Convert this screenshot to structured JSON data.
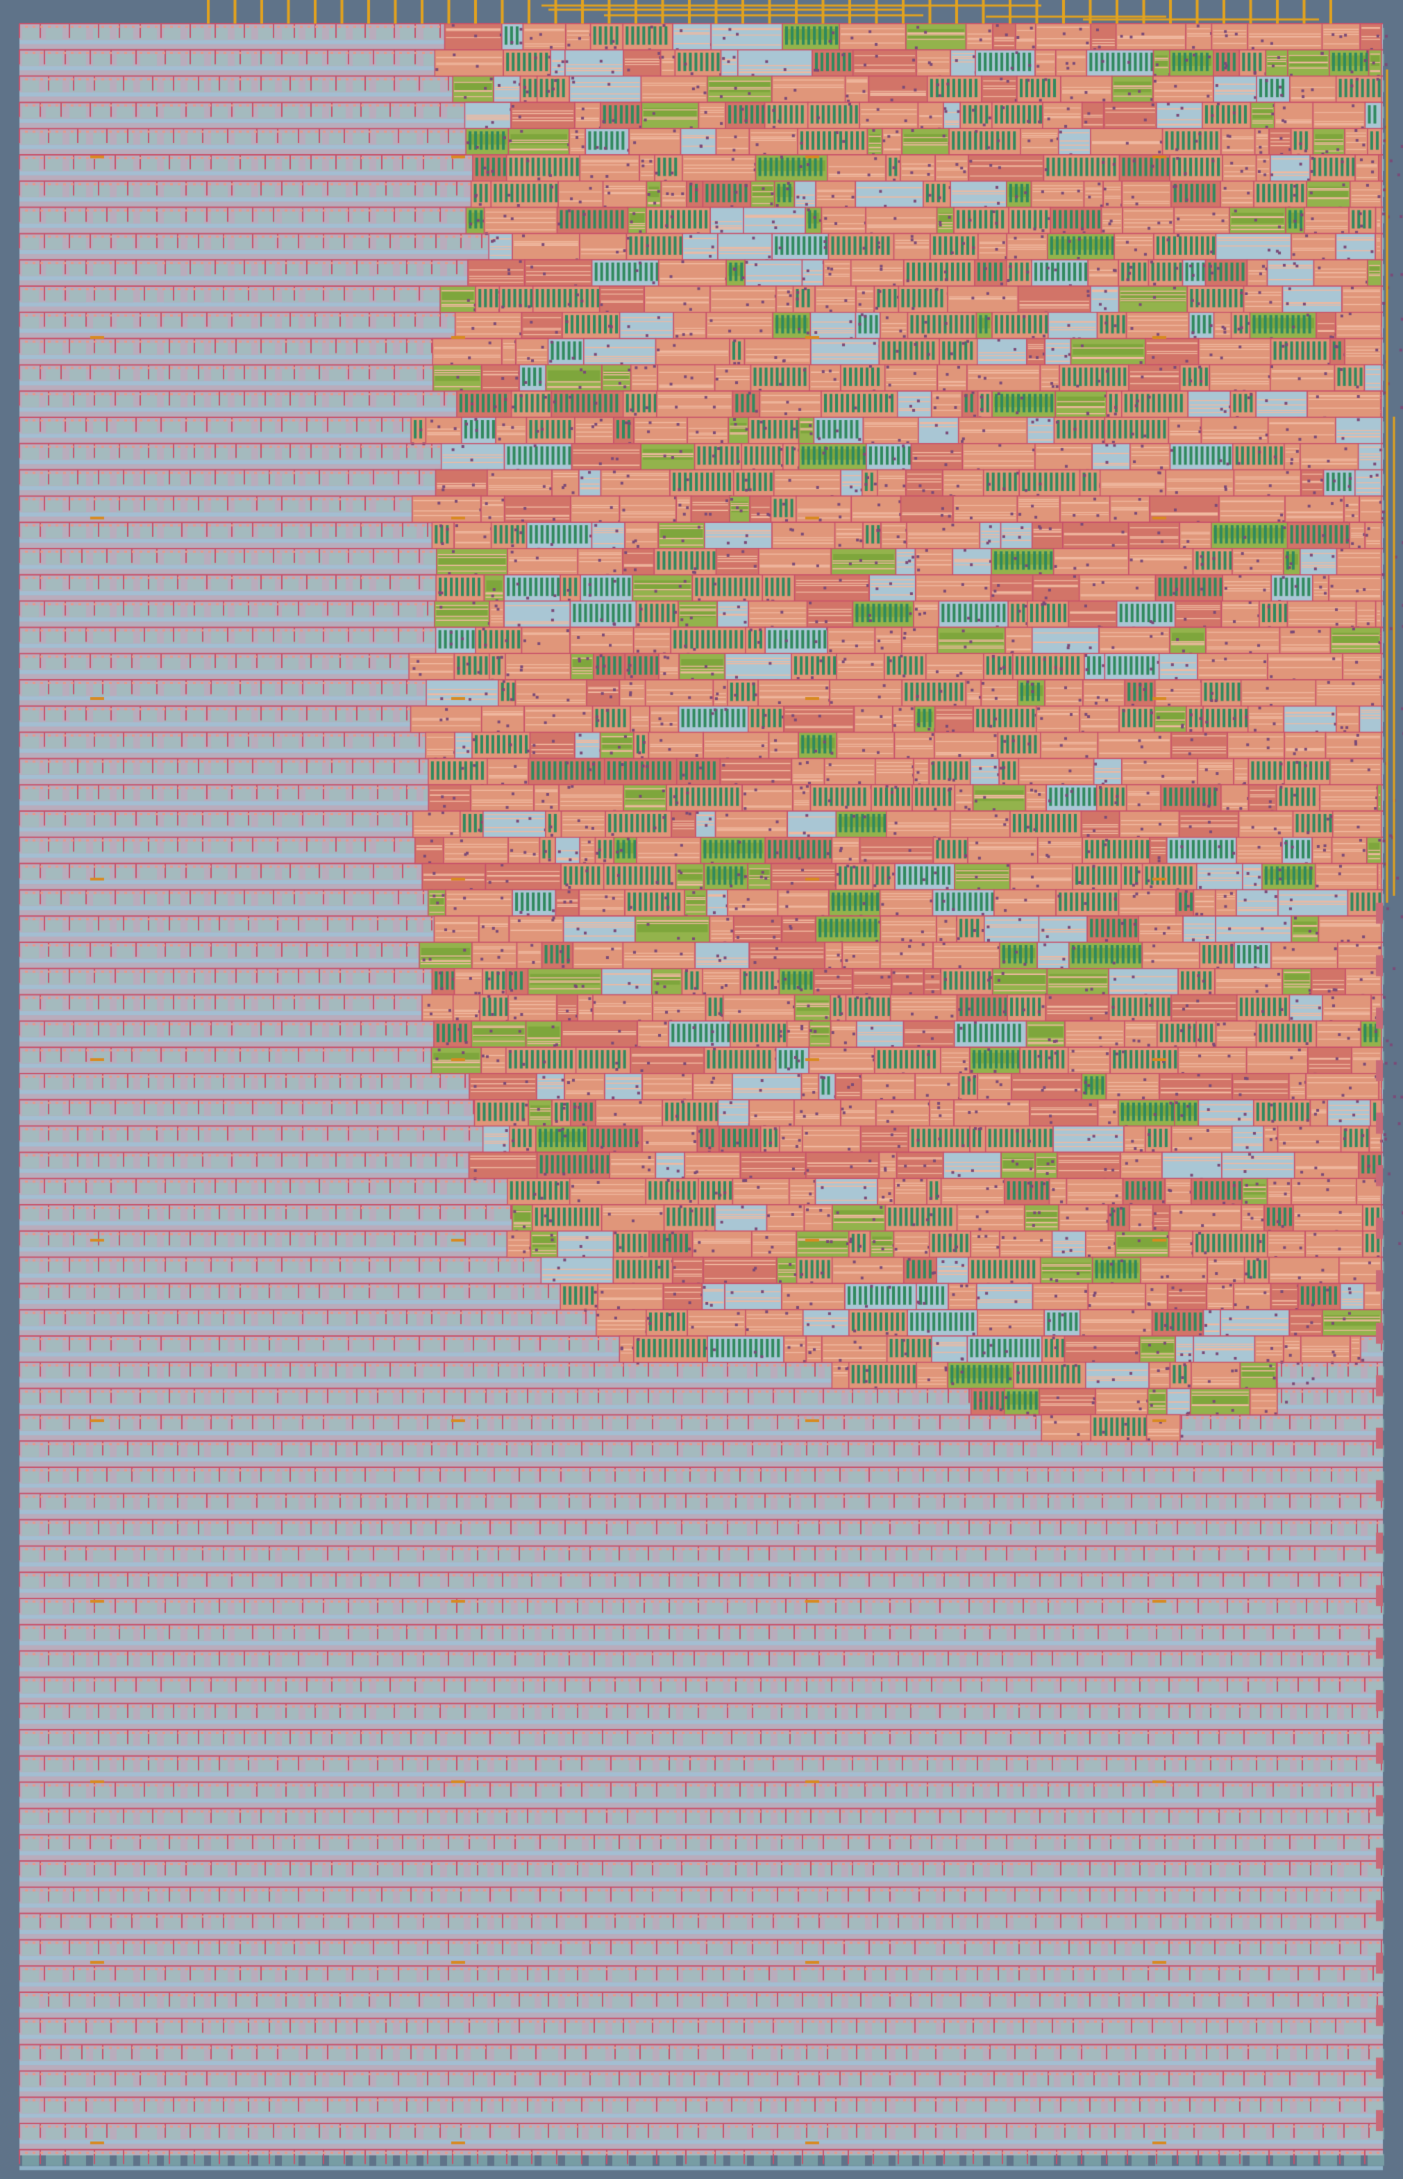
{
  "view": {
    "kind": "chip-layout",
    "colors": {
      "background": "#5f7389",
      "filler_cell": "#b9acbc",
      "row_rail": "#9cc4da",
      "cell_outline": "#c8506a",
      "logic_fill": "#e0967a",
      "logic_dark": "#d27468",
      "green_block": "#93b34c",
      "transistor": "#2f8a5e",
      "metal_wire": "#e2a21e",
      "via": "#7b4a78"
    }
  }
}
